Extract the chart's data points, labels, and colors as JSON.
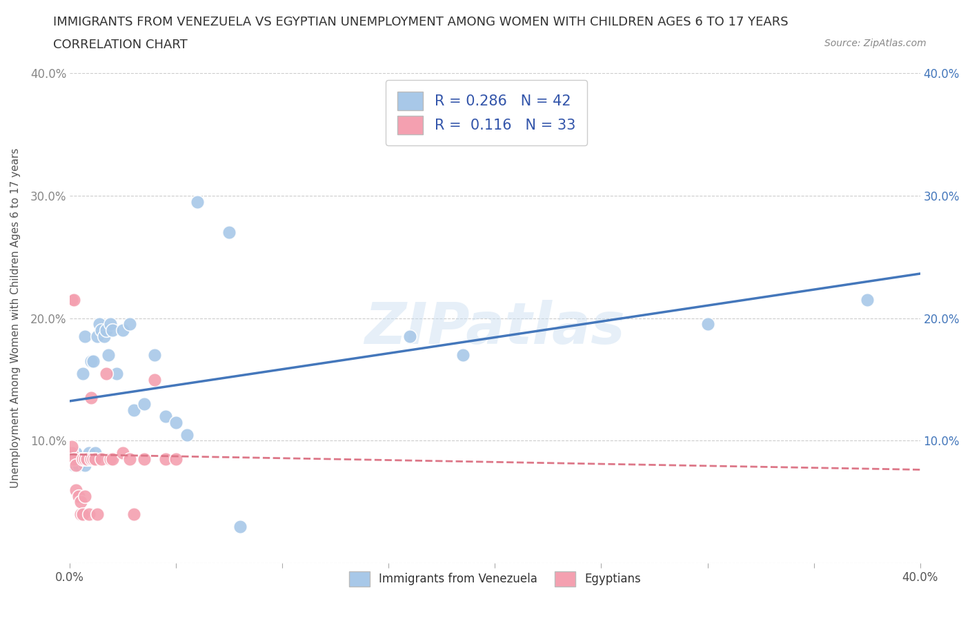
{
  "title": "IMMIGRANTS FROM VENEZUELA VS EGYPTIAN UNEMPLOYMENT AMONG WOMEN WITH CHILDREN AGES 6 TO 17 YEARS",
  "subtitle": "CORRELATION CHART",
  "source": "Source: ZipAtlas.com",
  "ylabel": "Unemployment Among Women with Children Ages 6 to 17 years",
  "xmin": 0.0,
  "xmax": 0.4,
  "ymin": 0.0,
  "ymax": 0.4,
  "x_ticks": [
    0.0,
    0.05,
    0.1,
    0.15,
    0.2,
    0.25,
    0.3,
    0.35,
    0.4
  ],
  "y_ticks": [
    0.0,
    0.1,
    0.2,
    0.3,
    0.4
  ],
  "grid_color": "#cccccc",
  "watermark": "ZIPatlas",
  "blue_R": 0.286,
  "blue_N": 42,
  "pink_R": 0.116,
  "pink_N": 33,
  "blue_color": "#a8c8e8",
  "pink_color": "#f4a0b0",
  "blue_line_color": "#4477bb",
  "pink_line_color": "#dd7788",
  "venezuela_x": [
    0.001,
    0.001,
    0.002,
    0.003,
    0.003,
    0.004,
    0.005,
    0.006,
    0.006,
    0.007,
    0.007,
    0.008,
    0.009,
    0.009,
    0.01,
    0.01,
    0.011,
    0.012,
    0.013,
    0.014,
    0.015,
    0.016,
    0.017,
    0.018,
    0.019,
    0.02,
    0.022,
    0.025,
    0.028,
    0.03,
    0.035,
    0.04,
    0.045,
    0.05,
    0.055,
    0.06,
    0.075,
    0.08,
    0.16,
    0.185,
    0.3,
    0.375
  ],
  "venezuela_y": [
    0.085,
    0.09,
    0.08,
    0.085,
    0.09,
    0.08,
    0.085,
    0.155,
    0.085,
    0.185,
    0.08,
    0.085,
    0.085,
    0.09,
    0.085,
    0.165,
    0.165,
    0.09,
    0.185,
    0.195,
    0.19,
    0.185,
    0.19,
    0.17,
    0.195,
    0.19,
    0.155,
    0.19,
    0.195,
    0.125,
    0.13,
    0.17,
    0.12,
    0.115,
    0.105,
    0.295,
    0.27,
    0.03,
    0.185,
    0.17,
    0.195,
    0.215
  ],
  "egypt_x": [
    0.001,
    0.001,
    0.001,
    0.001,
    0.002,
    0.002,
    0.003,
    0.003,
    0.004,
    0.005,
    0.005,
    0.006,
    0.006,
    0.007,
    0.007,
    0.008,
    0.009,
    0.01,
    0.01,
    0.011,
    0.012,
    0.013,
    0.015,
    0.017,
    0.019,
    0.02,
    0.025,
    0.028,
    0.03,
    0.035,
    0.04,
    0.045,
    0.05
  ],
  "egypt_y": [
    0.085,
    0.09,
    0.095,
    0.215,
    0.215,
    0.085,
    0.08,
    0.06,
    0.055,
    0.04,
    0.05,
    0.04,
    0.085,
    0.085,
    0.055,
    0.085,
    0.04,
    0.135,
    0.085,
    0.085,
    0.085,
    0.04,
    0.085,
    0.155,
    0.085,
    0.085,
    0.09,
    0.085,
    0.04,
    0.085,
    0.15,
    0.085,
    0.085
  ]
}
